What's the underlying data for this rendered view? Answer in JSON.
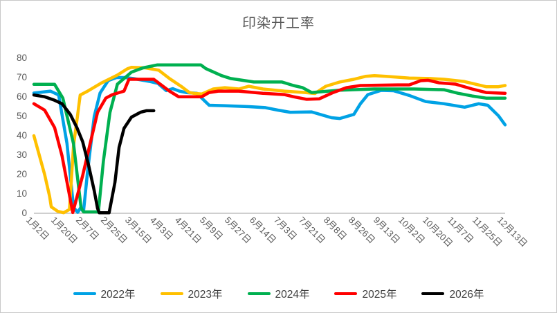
{
  "chart_data": {
    "type": "line",
    "title": "印染开工率",
    "legend_position": "bottom",
    "grid": false,
    "x_axis": {
      "labels": [
        "1月2日",
        "1月20日",
        "2月7日",
        "2月25日",
        "3月15日",
        "4月3日",
        "4月21日",
        "5月9日",
        "5月27日",
        "6月14日",
        "7月3日",
        "7月21日",
        "8月8日",
        "8月26日",
        "9月13日",
        "10月2日",
        "10月20日",
        "11月7日",
        "11月25日",
        "12月13日"
      ],
      "label_every_n_points": 3,
      "total_points": 58
    },
    "y_axis": {
      "min": 0,
      "max": 80,
      "tick_step": 10,
      "ticks": [
        0,
        10,
        20,
        30,
        40,
        50,
        60,
        70,
        80
      ]
    },
    "axis_color": "#BFBFBF",
    "text_color": "#595959",
    "series": [
      {
        "name": "2022年",
        "color": "#00A2E5",
        "points": [
          [
            0,
            62
          ],
          [
            1,
            62.5
          ],
          [
            2,
            63
          ],
          [
            3,
            61
          ],
          [
            4,
            36
          ],
          [
            4.8,
            3
          ],
          [
            5.3,
            0.5
          ],
          [
            5.6,
            2.5
          ],
          [
            6,
            1
          ],
          [
            6.5,
            22
          ],
          [
            7.3,
            50
          ],
          [
            8,
            62
          ],
          [
            9,
            68.5
          ],
          [
            10,
            70
          ],
          [
            11,
            70
          ],
          [
            12,
            69.5
          ],
          [
            14,
            68
          ],
          [
            15,
            67
          ],
          [
            16,
            63.3
          ],
          [
            16.8,
            64.3
          ],
          [
            17.6,
            63
          ],
          [
            18.5,
            62.2
          ],
          [
            19.7,
            61.9
          ],
          [
            21.2,
            55.7
          ],
          [
            23,
            55.5
          ],
          [
            26,
            55
          ],
          [
            28,
            54.5
          ],
          [
            29.5,
            53.2
          ],
          [
            31,
            52.1
          ],
          [
            33.6,
            52.3
          ],
          [
            36,
            49.3
          ],
          [
            37,
            48.9
          ],
          [
            38.7,
            51
          ],
          [
            39.5,
            56.5
          ],
          [
            40.4,
            61.2
          ],
          [
            42,
            63.4
          ],
          [
            43.5,
            63.2
          ],
          [
            45.4,
            60.8
          ],
          [
            47.4,
            57.6
          ],
          [
            49.6,
            56.5
          ],
          [
            52.1,
            54.7
          ],
          [
            53.8,
            56.5
          ],
          [
            54.9,
            55.7
          ],
          [
            56.2,
            50.3
          ],
          [
            57,
            45.6
          ]
        ]
      },
      {
        "name": "2023年",
        "color": "#FFC000",
        "points": [
          [
            0,
            40
          ],
          [
            1.3,
            20
          ],
          [
            1.9,
            8.7
          ],
          [
            2.1,
            3.3
          ],
          [
            2.9,
            1
          ],
          [
            3.6,
            0.3
          ],
          [
            4.3,
            2
          ],
          [
            4.8,
            35
          ],
          [
            5.3,
            51
          ],
          [
            5.6,
            61
          ],
          [
            6.5,
            63
          ],
          [
            8.2,
            67.3
          ],
          [
            10.1,
            71.3
          ],
          [
            11.3,
            74.5
          ],
          [
            11.8,
            75.3
          ],
          [
            13.5,
            75
          ],
          [
            15.1,
            73.8
          ],
          [
            16.4,
            69.5
          ],
          [
            17.8,
            65.5
          ],
          [
            18.8,
            62.3
          ],
          [
            19.3,
            61.9
          ],
          [
            20.3,
            61.5
          ],
          [
            21.7,
            64.1
          ],
          [
            23.1,
            64.8
          ],
          [
            24.8,
            64.1
          ],
          [
            26,
            65.5
          ],
          [
            27.7,
            64.1
          ],
          [
            30.3,
            63
          ],
          [
            32.8,
            62.3
          ],
          [
            34,
            61.8
          ],
          [
            35.3,
            65.5
          ],
          [
            37,
            67.7
          ],
          [
            38.7,
            69.1
          ],
          [
            40.1,
            70.6
          ],
          [
            41.2,
            71
          ],
          [
            42.6,
            70.6
          ],
          [
            45.4,
            69.7
          ],
          [
            47.9,
            69.5
          ],
          [
            49.6,
            69.1
          ],
          [
            52,
            68
          ],
          [
            54.7,
            65.3
          ],
          [
            56.2,
            65.3
          ],
          [
            57,
            65.9
          ]
        ]
      },
      {
        "name": "2024年",
        "color": "#00B050",
        "points": [
          [
            0,
            66.5
          ],
          [
            2.5,
            66.5
          ],
          [
            3.5,
            59.4
          ],
          [
            4.8,
            35.8
          ],
          [
            5.7,
            3
          ],
          [
            6,
            0.7
          ],
          [
            7.8,
            0.7
          ],
          [
            8.4,
            26.8
          ],
          [
            9.2,
            52
          ],
          [
            10.1,
            66.6
          ],
          [
            10.9,
            69.5
          ],
          [
            11.8,
            72.8
          ],
          [
            13.2,
            75
          ],
          [
            14.9,
            76.5
          ],
          [
            20.2,
            76.5
          ],
          [
            20.8,
            74.6
          ],
          [
            22.7,
            71
          ],
          [
            23.8,
            69.5
          ],
          [
            26.6,
            67.7
          ],
          [
            30,
            67.7
          ],
          [
            31.4,
            65.9
          ],
          [
            32.5,
            64.8
          ],
          [
            33.6,
            62.3
          ],
          [
            37,
            63.5
          ],
          [
            41.2,
            64.1
          ],
          [
            46,
            64.1
          ],
          [
            49.6,
            63.7
          ],
          [
            51.3,
            61.9
          ],
          [
            53,
            60.5
          ],
          [
            54.7,
            59.4
          ],
          [
            57,
            59.4
          ]
        ]
      },
      {
        "name": "2025年",
        "color": "#FF0000",
        "points": [
          [
            0,
            56.5
          ],
          [
            1.3,
            53.2
          ],
          [
            2.5,
            44.2
          ],
          [
            3.4,
            29.7
          ],
          [
            4.2,
            11.6
          ],
          [
            4.7,
            0.4
          ],
          [
            5.9,
            19.5
          ],
          [
            6.7,
            34
          ],
          [
            7.7,
            52.1
          ],
          [
            8.7,
            59.4
          ],
          [
            9.5,
            61.2
          ],
          [
            10.9,
            63
          ],
          [
            11.5,
            69.1
          ],
          [
            14.5,
            69.1
          ],
          [
            15.5,
            65.9
          ],
          [
            16.4,
            63
          ],
          [
            17.5,
            60.1
          ],
          [
            20.3,
            60.1
          ],
          [
            21.2,
            62.3
          ],
          [
            22.3,
            63
          ],
          [
            24.8,
            63
          ],
          [
            27.7,
            61.9
          ],
          [
            30.3,
            61.2
          ],
          [
            31.4,
            60.1
          ],
          [
            33,
            58.8
          ],
          [
            34.5,
            59
          ],
          [
            36.2,
            62.3
          ],
          [
            37.8,
            64.8
          ],
          [
            39.5,
            65.9
          ],
          [
            44,
            66.2
          ],
          [
            45.4,
            66.2
          ],
          [
            46.8,
            68.4
          ],
          [
            47.7,
            68.6
          ],
          [
            49,
            67.3
          ],
          [
            51,
            66.6
          ],
          [
            53,
            64.1
          ],
          [
            54.7,
            62.3
          ],
          [
            57,
            61.9
          ]
        ]
      },
      {
        "name": "2026年",
        "color": "#000000",
        "points": [
          [
            0,
            61
          ],
          [
            1.3,
            60.1
          ],
          [
            2.5,
            58.3
          ],
          [
            3.4,
            56.5
          ],
          [
            4.4,
            51
          ],
          [
            5.2,
            44.2
          ],
          [
            5.9,
            36.9
          ],
          [
            6.6,
            25
          ],
          [
            7.3,
            11.6
          ],
          [
            7.7,
            2.5
          ],
          [
            7.9,
            0.3
          ],
          [
            9.1,
            0.3
          ],
          [
            9.8,
            15.9
          ],
          [
            10.3,
            34
          ],
          [
            10.9,
            43.8
          ],
          [
            11.8,
            49.6
          ],
          [
            12.9,
            52.1
          ],
          [
            13.6,
            52.9
          ],
          [
            14.5,
            52.9
          ]
        ]
      }
    ]
  }
}
